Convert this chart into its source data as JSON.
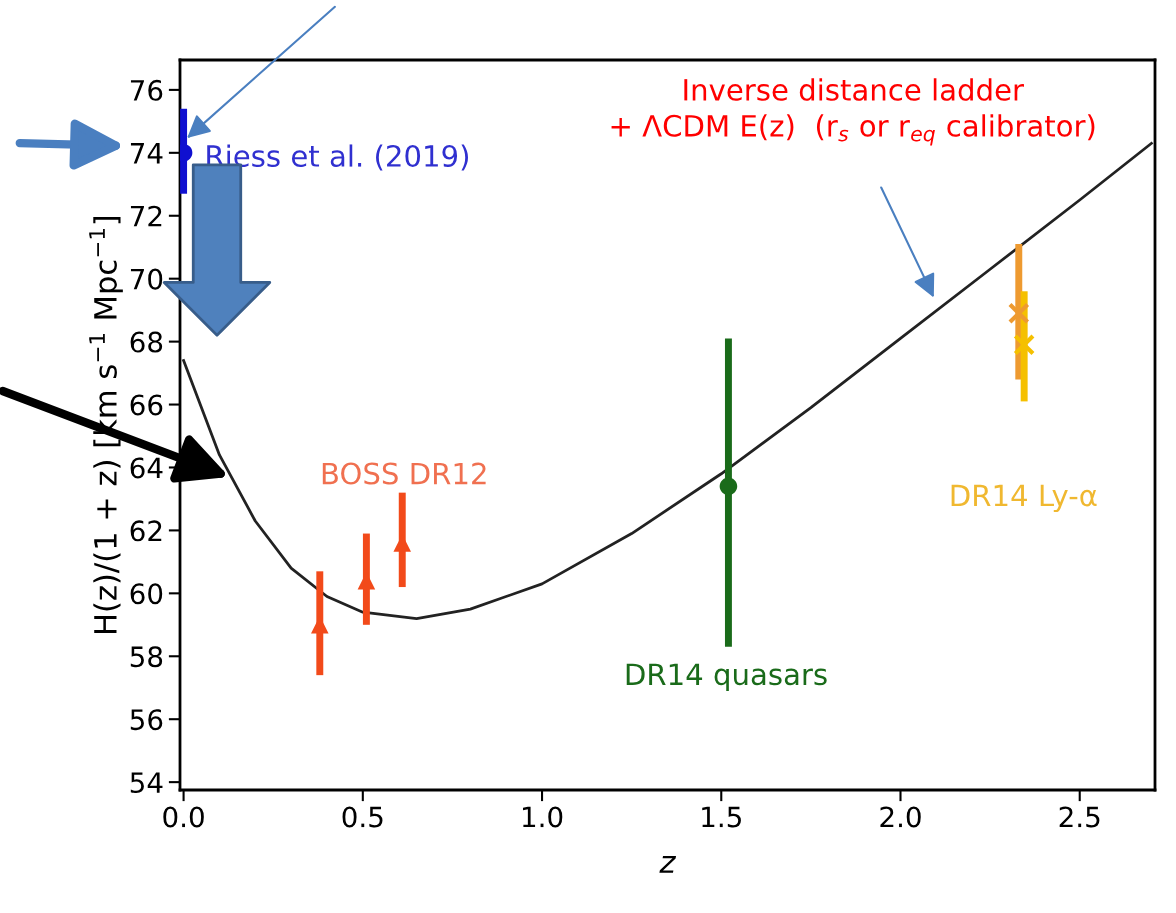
{
  "chart_data": {
    "type": "scatter",
    "xlabel": "z",
    "ylabel": "H(z)/(1 + z) [km s$^{−1}$ Mpc$^{−1}$]",
    "xlim": [
      -0.01,
      2.71
    ],
    "ylim": [
      53.75,
      76.95
    ],
    "xticks": [
      {
        "value": 0,
        "label": "0.0"
      },
      {
        "value": 0.5,
        "label": "0.5"
      },
      {
        "value": 1,
        "label": "1.0"
      },
      {
        "value": 1.5,
        "label": "1.5"
      },
      {
        "value": 2,
        "label": "2.0"
      },
      {
        "value": 2.5,
        "label": "2.5"
      }
    ],
    "yticks": [
      54,
      56,
      58,
      60,
      62,
      64,
      66,
      68,
      70,
      72,
      74,
      76
    ],
    "grid": false,
    "series": [
      {
        "type": "line",
        "color": "#222222",
        "marker": "none",
        "line_style": "solid",
        "x": [
          0,
          0.1,
          0.2,
          0.3,
          0.4,
          0.5,
          0.65,
          0.8,
          1.0,
          1.25,
          1.5,
          1.75,
          2.0,
          2.25,
          2.5,
          2.7
        ],
        "values": [
          67.4,
          64.4,
          62.3,
          60.8,
          59.9,
          59.4,
          59.2,
          59.5,
          60.3,
          61.9,
          63.8,
          65.9,
          68.1,
          70.3,
          72.5,
          74.3
        ]
      },
      {
        "color": "#1010d0",
        "marker": "circle",
        "x": [
          0
        ],
        "values": [
          74.0
        ],
        "errors": [
          [
            72.7,
            75.4
          ]
        ]
      },
      {
        "color": "#f24a1a",
        "marker": "triangle",
        "x": [
          0.38,
          0.51,
          0.61
        ],
        "values": [
          59.0,
          60.4,
          61.6
        ],
        "errors": [
          [
            57.4,
            60.7
          ],
          [
            59.0,
            61.9
          ],
          [
            60.2,
            63.2
          ]
        ]
      },
      {
        "color": "#1a6b1a",
        "marker": "circle",
        "x": [
          1.52
        ],
        "values": [
          63.4
        ],
        "errors": [
          [
            58.3,
            68.1
          ]
        ]
      },
      {
        "color": "#ee9a30",
        "marker": "cross",
        "x": [
          2.33
        ],
        "values": [
          68.9
        ],
        "errors": [
          [
            66.8,
            71.1
          ]
        ]
      },
      {
        "color": "#f5c000",
        "marker": "cross",
        "x": [
          2.345
        ],
        "values": [
          67.9
        ],
        "errors": [
          [
            66.1,
            69.6
          ]
        ]
      }
    ],
    "annotations": [
      "Riess et al. (2019)",
      "BOSS DR12",
      "DR14 quasars",
      "DR14 Ly-α",
      "Inverse distance ladder\n+ ΛCDM E(z)  (r$_{s}$ or r$_{eq}$ calibrator)"
    ]
  }
}
